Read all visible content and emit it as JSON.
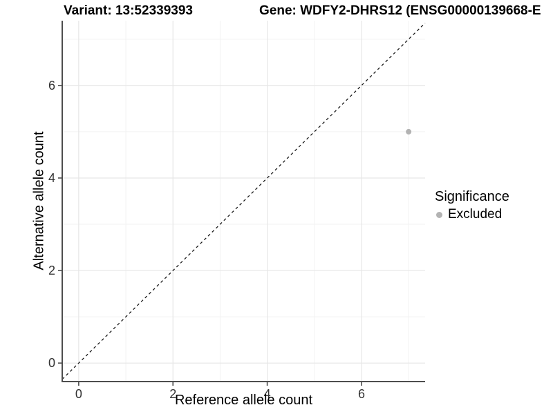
{
  "chart_data": {
    "type": "scatter",
    "title_left": "Variant: 13:52339393",
    "title_right": "Gene: WDFY2-DHRS12 (ENSG00000139668-E",
    "xlabel": "Reference allele count",
    "ylabel": "Alternative allele count",
    "xlim": [
      -0.35,
      7.35
    ],
    "ylim": [
      -0.4,
      7.4
    ],
    "xticks": [
      0,
      2,
      4,
      6
    ],
    "yticks": [
      0,
      2,
      4,
      6
    ],
    "xminor_ticks": [
      1,
      3,
      5,
      7
    ],
    "yminor_ticks": [
      1,
      3,
      5,
      7
    ],
    "grid": true,
    "series": [
      {
        "name": "Excluded",
        "color": "#b3b3b3",
        "points": [
          {
            "x": 7,
            "y": 5
          }
        ]
      }
    ],
    "reference_line": {
      "type": "identity",
      "slope": 1,
      "intercept": 0,
      "style": "dashed",
      "color": "#1a1a1a"
    },
    "legend": {
      "title": "Significance",
      "position": "right",
      "items": [
        {
          "label": "Excluded",
          "marker_color": "#b3b3b3"
        }
      ]
    },
    "colors": {
      "background": "#ffffff",
      "grid_major": "#e6e6e6",
      "grid_minor": "#f2f2f2",
      "axis_line": "#4d4d4d",
      "tick_label": "#333333"
    }
  }
}
